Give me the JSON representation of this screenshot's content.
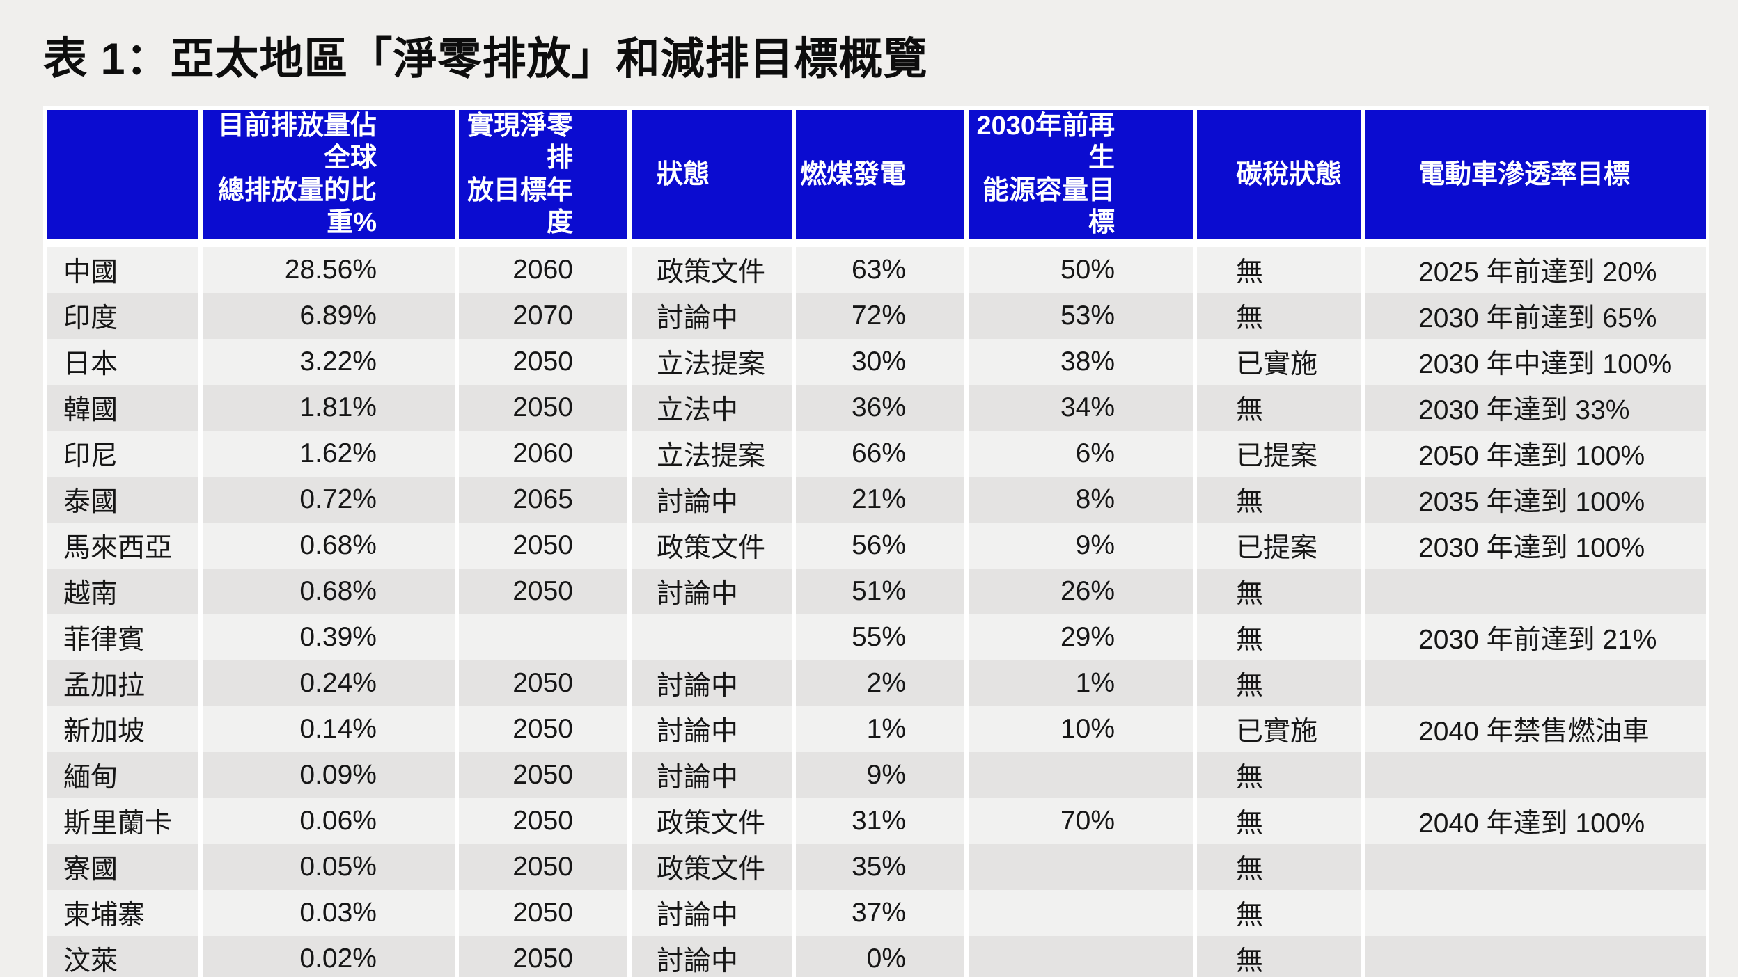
{
  "page": {
    "title": "表 1：亞太地區「淨零排放」和減排目標概覽"
  },
  "colors": {
    "page_bg": "#f0efed",
    "header_bg": "#0b0cd0",
    "header_fg": "#ffffff",
    "row_odd": "#f1f1f0",
    "row_even": "#e4e3e2",
    "text": "#161616",
    "separator": "#ffffff"
  },
  "table": {
    "columns": [
      {
        "id": "country",
        "label": ""
      },
      {
        "id": "emissions",
        "label": "目前排放量佔全球\n總排放量的比重%"
      },
      {
        "id": "year",
        "label": "實現淨零排\n放目標年度"
      },
      {
        "id": "status",
        "label": "狀態"
      },
      {
        "id": "coal",
        "label": "燃煤發電"
      },
      {
        "id": "renewable",
        "label": "2030年前再生\n能源容量目標"
      },
      {
        "id": "carbontax",
        "label": "碳稅狀態"
      },
      {
        "id": "ev",
        "label": "電動車滲透率目標"
      }
    ],
    "rows": [
      [
        "中國",
        "28.56%",
        "2060",
        "政策文件",
        "63%",
        "50%",
        "無",
        "2025 年前達到 20%"
      ],
      [
        "印度",
        "6.89%",
        "2070",
        "討論中",
        "72%",
        "53%",
        "無",
        "2030 年前達到 65%"
      ],
      [
        "日本",
        "3.22%",
        "2050",
        "立法提案",
        "30%",
        "38%",
        "已實施",
        "2030 年中達到 100%"
      ],
      [
        "韓國",
        "1.81%",
        "2050",
        "立法中",
        "36%",
        "34%",
        "無",
        "2030 年達到 33%"
      ],
      [
        "印尼",
        "1.62%",
        "2060",
        "立法提案",
        "66%",
        "6%",
        "已提案",
        "2050 年達到 100%"
      ],
      [
        "泰國",
        "0.72%",
        "2065",
        "討論中",
        "21%",
        "8%",
        "無",
        "2035 年達到 100%"
      ],
      [
        "馬來西亞",
        "0.68%",
        "2050",
        "政策文件",
        "56%",
        "9%",
        "已提案",
        "2030 年達到 100%"
      ],
      [
        "越南",
        "0.68%",
        "2050",
        "討論中",
        "51%",
        "26%",
        "無",
        ""
      ],
      [
        "菲律賓",
        "0.39%",
        "",
        "",
        "55%",
        "29%",
        "無",
        "2030 年前達到 21%"
      ],
      [
        "孟加拉",
        "0.24%",
        "2050",
        "討論中",
        "2%",
        "1%",
        "無",
        ""
      ],
      [
        "新加坡",
        "0.14%",
        "2050",
        "討論中",
        "1%",
        "10%",
        "已實施",
        "2040 年禁售燃油車"
      ],
      [
        "緬甸",
        "0.09%",
        "2050",
        "討論中",
        "9%",
        "",
        "無",
        ""
      ],
      [
        "斯里蘭卡",
        "0.06%",
        "2050",
        "政策文件",
        "31%",
        "70%",
        "無",
        "2040 年達到 100%"
      ],
      [
        "寮國",
        "0.05%",
        "2050",
        "政策文件",
        "35%",
        "",
        "無",
        ""
      ],
      [
        "柬埔寨",
        "0.03%",
        "2050",
        "討論中",
        "37%",
        "",
        "無",
        ""
      ],
      [
        "汶萊",
        "0.02%",
        "2050",
        "討論中",
        "0%",
        "",
        "無",
        ""
      ]
    ]
  }
}
